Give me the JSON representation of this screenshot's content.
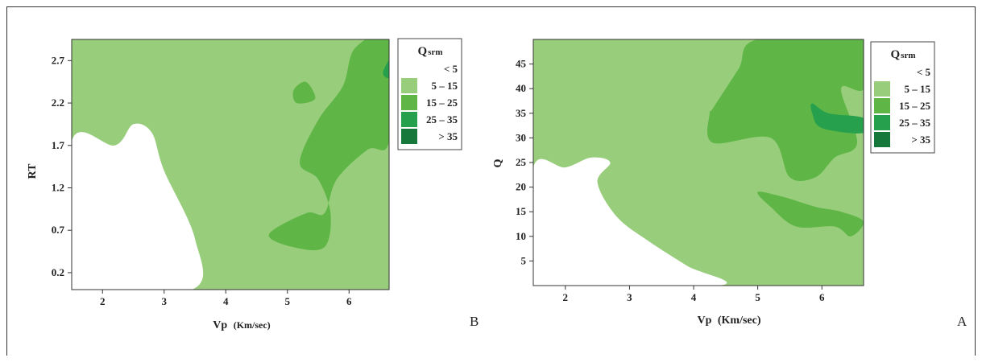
{
  "colors": {
    "lt5": "#ffffff",
    "c5_15": "#98cd7c",
    "c15_25": "#5fb646",
    "c25_35": "#26a04c",
    "gt35": "#16783a"
  },
  "legend": {
    "title_main": "Q",
    "title_sub": "srm",
    "items": [
      {
        "label": "<   5",
        "color_key": "lt5"
      },
      {
        "label": "5  –  15",
        "color_key": "c5_15"
      },
      {
        "label": "15  –  25",
        "color_key": "c15_25"
      },
      {
        "label": "25  –  35",
        "color_key": "c25_35"
      },
      {
        "label": ">  35",
        "color_key": "gt35"
      }
    ]
  },
  "chart_data": [
    {
      "type": "heatmap",
      "panel_label": "B",
      "xlabel_main": "Vp",
      "xlabel_unit": "(Km/sec)",
      "ylabel": "RT",
      "xlim": [
        1.5,
        6.65
      ],
      "ylim": [
        0.0,
        2.95
      ],
      "x_ticks": [
        "2",
        "3",
        "4",
        "5",
        "6"
      ],
      "y_ticks": [
        "0.2",
        "0.7",
        "1.2",
        "1.7",
        "2.2",
        "2.7"
      ],
      "background_class": "5 – 15",
      "regions": [
        {
          "class": "< 5",
          "description_points": [
            [
              1.5,
              1.75
            ],
            [
              2.2,
              1.7
            ],
            [
              2.5,
              1.95
            ],
            [
              2.8,
              1.85
            ],
            [
              3.0,
              1.4
            ],
            [
              3.5,
              0.6
            ],
            [
              3.45,
              0.0
            ],
            [
              1.5,
              0.0
            ]
          ]
        },
        {
          "class": "15 – 25",
          "description_points": [
            [
              6.1,
              2.85
            ],
            [
              6.65,
              2.95
            ],
            [
              6.65,
              1.75
            ],
            [
              6.3,
              1.65
            ],
            [
              5.8,
              1.3
            ],
            [
              5.6,
              0.9
            ],
            [
              5.3,
              0.9
            ],
            [
              4.7,
              0.65
            ],
            [
              5.1,
              0.5
            ],
            [
              5.6,
              0.5
            ],
            [
              5.7,
              0.9
            ],
            [
              5.5,
              1.3
            ],
            [
              5.2,
              1.5
            ],
            [
              5.5,
              2.0
            ],
            [
              5.9,
              2.4
            ]
          ]
        },
        {
          "class": "15 – 25",
          "description_points": [
            [
              5.1,
              2.35
            ],
            [
              5.3,
              2.45
            ],
            [
              5.45,
              2.25
            ],
            [
              5.15,
              2.2
            ]
          ]
        },
        {
          "class": "25 – 35",
          "description_points": [
            [
              6.55,
              2.55
            ],
            [
              6.65,
              2.7
            ],
            [
              6.65,
              2.5
            ]
          ]
        }
      ]
    },
    {
      "type": "heatmap",
      "panel_label": "A",
      "xlabel_main": "Vp",
      "xlabel_unit": "(Km/sec)",
      "ylabel": "Q",
      "xlim": [
        1.5,
        6.65
      ],
      "ylim": [
        0.0,
        50.0
      ],
      "x_ticks": [
        "2",
        "3",
        "4",
        "5",
        "6"
      ],
      "y_ticks": [
        "5",
        "10",
        "15",
        "20",
        "25",
        "30",
        "35",
        "40",
        "45"
      ],
      "background_class": "5 – 15",
      "regions": [
        {
          "class": "< 5",
          "description_points": [
            [
              1.5,
              24
            ],
            [
              2.0,
              24
            ],
            [
              2.4,
              26
            ],
            [
              2.7,
              25
            ],
            [
              2.5,
              21
            ],
            [
              2.8,
              14
            ],
            [
              3.3,
              9
            ],
            [
              3.9,
              4
            ],
            [
              4.4,
              0
            ],
            [
              1.5,
              0
            ]
          ]
        },
        {
          "class": "15 – 25",
          "description_points": [
            [
              4.3,
              36
            ],
            [
              4.7,
              44
            ],
            [
              5.0,
              50
            ],
            [
              6.65,
              50
            ],
            [
              6.65,
              40
            ],
            [
              6.3,
              40
            ],
            [
              6.55,
              29
            ],
            [
              6.2,
              26
            ],
            [
              5.9,
              22
            ],
            [
              5.5,
              22
            ],
            [
              5.2,
              30
            ],
            [
              4.3,
              29
            ],
            [
              4.25,
              35
            ]
          ]
        },
        {
          "class": "15 – 25",
          "description_points": [
            [
              5.0,
              19
            ],
            [
              5.4,
              18
            ],
            [
              5.9,
              16
            ],
            [
              6.3,
              15
            ],
            [
              6.65,
              13
            ],
            [
              6.45,
              10
            ],
            [
              6.2,
              12
            ],
            [
              5.6,
              12
            ],
            [
              5.2,
              16
            ]
          ]
        },
        {
          "class": "25 – 35",
          "description_points": [
            [
              5.85,
              37
            ],
            [
              6.1,
              35
            ],
            [
              6.65,
              34
            ],
            [
              6.65,
              31
            ],
            [
              6.0,
              32
            ],
            [
              5.85,
              35
            ]
          ]
        }
      ]
    }
  ]
}
